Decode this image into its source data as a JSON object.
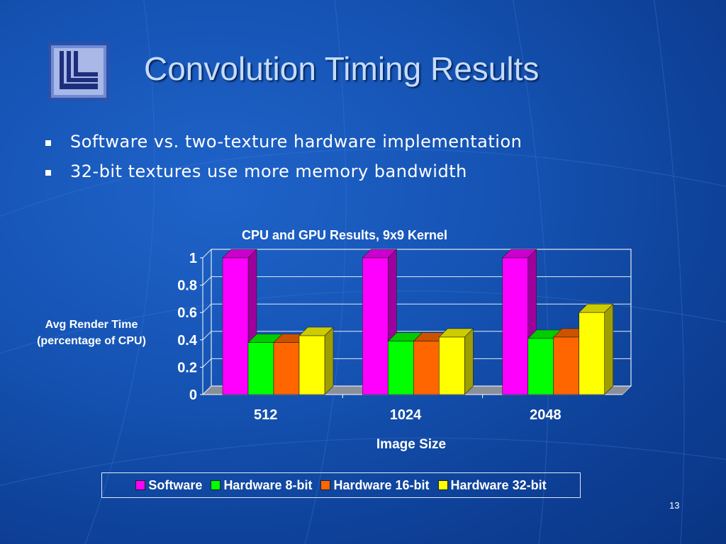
{
  "slide": {
    "title": "Convolution Timing Results",
    "bullets": [
      "Software vs. two-texture hardware implementation",
      "32-bit textures use more memory bandwidth"
    ],
    "page_number": "13"
  },
  "chart_data": {
    "type": "bar",
    "title": "CPU and GPU Results, 9x9 Kernel",
    "xlabel": "Image Size",
    "ylabel_lines": [
      "Avg Render Time",
      "(percentage of CPU)"
    ],
    "categories": [
      "512",
      "1024",
      "2048"
    ],
    "ylim": [
      0,
      1
    ],
    "yticks": [
      "0",
      "0.2",
      "0.4",
      "0.6",
      "0.8",
      "1"
    ],
    "grid": true,
    "legend_position": "bottom",
    "series": [
      {
        "name": "Software",
        "color": "#ff00ff",
        "values": [
          1.0,
          1.0,
          1.0
        ]
      },
      {
        "name": "Hardware 8-bit",
        "color": "#00ff00",
        "values": [
          0.38,
          0.39,
          0.41
        ]
      },
      {
        "name": "Hardware 16-bit",
        "color": "#ff6600",
        "values": [
          0.38,
          0.39,
          0.42
        ]
      },
      {
        "name": "Hardware 32-bit",
        "color": "#ffff00",
        "values": [
          0.43,
          0.42,
          0.6
        ]
      }
    ]
  }
}
